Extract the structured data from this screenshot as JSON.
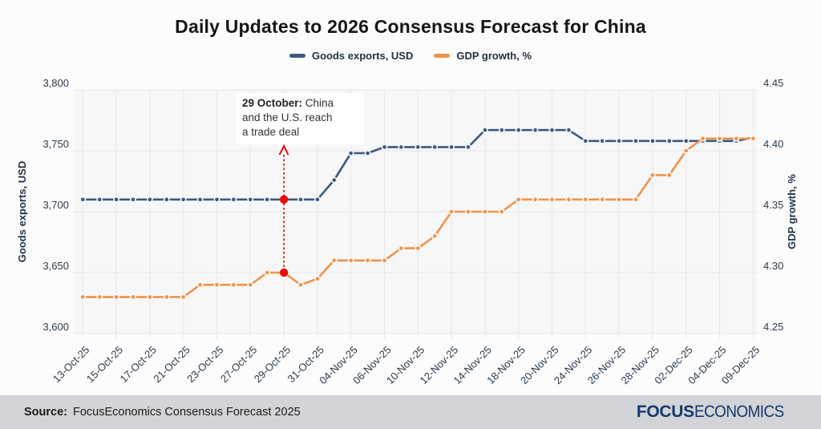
{
  "title": "Daily Updates to 2026 Consensus Forecast for China",
  "legend": {
    "items": [
      {
        "label": "Goods exports, USD",
        "color": "#3b5a7f"
      },
      {
        "label": "GDP growth, %",
        "color": "#ef9349"
      }
    ]
  },
  "chart_data": {
    "type": "line",
    "title": "Daily Updates to 2026 Consensus Forecast for China",
    "grid": true,
    "legend_position": "top",
    "x_tick_labels": [
      "13-Oct-25",
      "15-Oct-25",
      "17-Oct-25",
      "21-Oct-25",
      "23-Oct-25",
      "27-Oct-25",
      "29-Oct-25",
      "31-Oct-25",
      "04-Nov-25",
      "06-Nov-25",
      "10-Nov-25",
      "12-Nov-25",
      "14-Nov-25",
      "18-Nov-25",
      "20-Nov-25",
      "24-Nov-25",
      "26-Nov-25",
      "28-Nov-25",
      "02-Dec-25",
      "04-Dec-25",
      "09-Dec-25"
    ],
    "points_per_tick": 2,
    "left_axis": {
      "label": "Goods exports, USD",
      "min": 3600,
      "max": 3800,
      "ticks": [
        "3,800",
        "3,750",
        "3,700",
        "3,650",
        "3,600"
      ]
    },
    "right_axis": {
      "label": "GDP growth, %",
      "min": 4.25,
      "max": 4.45,
      "ticks": [
        "4.45",
        "4.40",
        "4.35",
        "4.30",
        "4.25"
      ]
    },
    "series": [
      {
        "name": "Goods exports, USD",
        "axis": "left",
        "color": "#3b5a7f",
        "values": [
          3710,
          3710,
          3710,
          3710,
          3710,
          3710,
          3710,
          3710,
          3710,
          3710,
          3710,
          3710,
          3710,
          3710,
          3710,
          3726,
          3748,
          3748,
          3753,
          3753,
          3753,
          3753,
          3753,
          3753,
          3767,
          3767,
          3767,
          3767,
          3767,
          3767,
          3758,
          3758,
          3758,
          3758,
          3758,
          3758,
          3758,
          3758,
          3758,
          3758,
          3761
        ]
      },
      {
        "name": "GDP growth, %",
        "axis": "right",
        "color": "#ef9349",
        "values": [
          4.28,
          4.28,
          4.28,
          4.28,
          4.28,
          4.28,
          4.28,
          4.29,
          4.29,
          4.29,
          4.29,
          4.3,
          4.3,
          4.29,
          4.295,
          4.31,
          4.31,
          4.31,
          4.31,
          4.32,
          4.32,
          4.33,
          4.35,
          4.35,
          4.35,
          4.35,
          4.36,
          4.36,
          4.36,
          4.36,
          4.36,
          4.36,
          4.36,
          4.36,
          4.38,
          4.38,
          4.4,
          4.41,
          4.41,
          4.41,
          4.41
        ]
      }
    ],
    "annotation": {
      "x_index": 12,
      "bold": "29 October:",
      "line1_rest": " China",
      "line2": "and the U.S. reach",
      "line3": "a trade deal",
      "marker_left_value": 3710,
      "marker_right_value": 4.3,
      "color": "#e90f0f"
    }
  },
  "footer": {
    "source_label": "Source:",
    "source_text": "FocusEconomics Consensus Forecast 2025",
    "logo_bold": "FOCUS",
    "logo_rest": "ECONOMICS"
  }
}
